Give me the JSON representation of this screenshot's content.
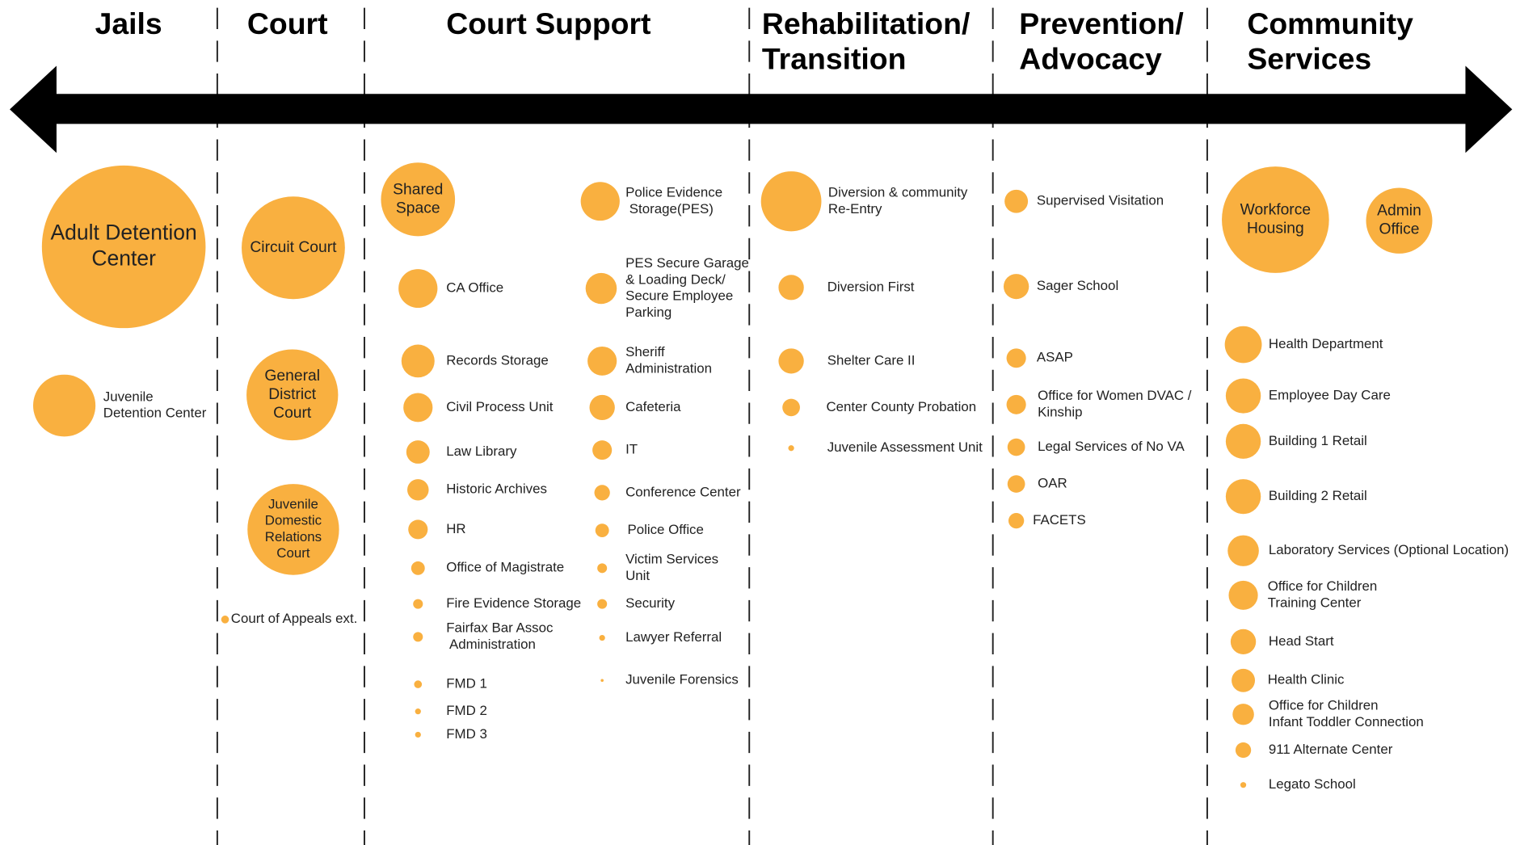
{
  "columns": [
    {
      "title": [
        "Jails"
      ],
      "items": [
        {
          "label": [
            "Adult Detention",
            "Center"
          ]
        },
        {
          "label": [
            "Juvenile",
            "Detention Center"
          ]
        }
      ]
    },
    {
      "title": [
        "Court"
      ],
      "items": [
        {
          "label": [
            "Circuit Court"
          ]
        },
        {
          "label": [
            "General",
            "District",
            "Court"
          ]
        },
        {
          "label": [
            "Juvenile",
            "Domestic",
            "Relations",
            "Court"
          ]
        },
        {
          "label": [
            "Court of Appeals ext."
          ]
        }
      ]
    },
    {
      "title": [
        "Court Support"
      ],
      "items": [
        {
          "label": [
            "Shared",
            "Space"
          ]
        },
        {
          "label": [
            "CA Office"
          ]
        },
        {
          "label": [
            "Records Storage"
          ]
        },
        {
          "label": [
            "Civil Process Unit"
          ]
        },
        {
          "label": [
            "Law Library"
          ]
        },
        {
          "label": [
            "Historic Archives"
          ]
        },
        {
          "label": [
            "HR"
          ]
        },
        {
          "label": [
            "Office of Magistrate"
          ]
        },
        {
          "label": [
            "Fire Evidence Storage"
          ]
        },
        {
          "label": [
            "Fairfax Bar Assoc",
            " Administration"
          ]
        },
        {
          "label": [
            "FMD 1"
          ]
        },
        {
          "label": [
            "FMD 2"
          ]
        },
        {
          "label": [
            "FMD 3"
          ]
        },
        {
          "label": [
            "Police Evidence",
            " Storage(PES)"
          ]
        },
        {
          "label": [
            "PES Secure Garage",
            "& Loading Deck/",
            "Secure Employee",
            "Parking"
          ]
        },
        {
          "label": [
            "Sheriff",
            "Administration"
          ]
        },
        {
          "label": [
            "Cafeteria"
          ]
        },
        {
          "label": [
            "IT"
          ]
        },
        {
          "label": [
            "Conference Center"
          ]
        },
        {
          "label": [
            "Police Office"
          ]
        },
        {
          "label": [
            "Victim Services",
            "Unit"
          ]
        },
        {
          "label": [
            "Security"
          ]
        },
        {
          "label": [
            "Lawyer Referral"
          ]
        },
        {
          "label": [
            "Juvenile Forensics"
          ]
        }
      ]
    },
    {
      "title": [
        "Rehabilitation/",
        "Transition"
      ],
      "items": [
        {
          "label": [
            "Diversion & community",
            "Re-Entry"
          ]
        },
        {
          "label": [
            "Diversion First"
          ]
        },
        {
          "label": [
            "Shelter Care II"
          ]
        },
        {
          "label": [
            "Center County Probation"
          ]
        },
        {
          "label": [
            "Juvenile Assessment Unit"
          ]
        }
      ]
    },
    {
      "title": [
        "Prevention/",
        "Advocacy"
      ],
      "items": [
        {
          "label": [
            "Supervised Visitation"
          ]
        },
        {
          "label": [
            "Sager School"
          ]
        },
        {
          "label": [
            "ASAP"
          ]
        },
        {
          "label": [
            "Office for Women DVAC /",
            "Kinship"
          ]
        },
        {
          "label": [
            "Legal Services of No VA"
          ]
        },
        {
          "label": [
            "OAR"
          ]
        },
        {
          "label": [
            "FACETS"
          ]
        }
      ]
    },
    {
      "title": [
        "Community",
        "Services"
      ],
      "items": [
        {
          "label": [
            "Workforce",
            "Housing"
          ]
        },
        {
          "label": [
            "Admin",
            "Office"
          ]
        },
        {
          "label": [
            "Health Department"
          ]
        },
        {
          "label": [
            "Employee Day Care"
          ]
        },
        {
          "label": [
            "Building 1 Retail"
          ]
        },
        {
          "label": [
            "Building 2 Retail"
          ]
        },
        {
          "label": [
            "Laboratory Services (Optional Location)"
          ]
        },
        {
          "label": [
            "Office for Children",
            "Training Center"
          ]
        },
        {
          "label": [
            "Head Start"
          ]
        },
        {
          "label": [
            "Health Clinic"
          ]
        },
        {
          "label": [
            "Office for Children",
            "Infant Toddler Connection"
          ]
        },
        {
          "label": [
            "911 Alternate Center"
          ]
        },
        {
          "label": [
            "Legato School"
          ]
        }
      ]
    }
  ]
}
